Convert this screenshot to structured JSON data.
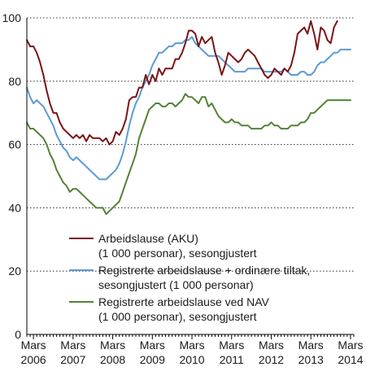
{
  "chart_data": {
    "type": "line",
    "title": "",
    "xlabel": "",
    "ylabel": "",
    "ylim": [
      0,
      100
    ],
    "yticks": [
      0,
      20,
      40,
      60,
      80,
      100
    ],
    "xlim": [
      2006.0,
      2014.25
    ],
    "xticks": [
      {
        "x": 2006.167,
        "line1": "Mars",
        "line2": "2006"
      },
      {
        "x": 2007.167,
        "line1": "Mars",
        "line2": "2007"
      },
      {
        "x": 2008.167,
        "line1": "Mars",
        "line2": "2008"
      },
      {
        "x": 2009.167,
        "line1": "Mars",
        "line2": "2009"
      },
      {
        "x": 2010.167,
        "line1": "Mars",
        "line2": "2010"
      },
      {
        "x": 2011.167,
        "line1": "Mars",
        "line2": "2011"
      },
      {
        "x": 2012.167,
        "line1": "Mars",
        "line2": "2012"
      },
      {
        "x": 2013.167,
        "line1": "Mars",
        "line2": "2013"
      },
      {
        "x": 2014.167,
        "line1": "Mars",
        "line2": "2014"
      }
    ],
    "grid": "horizontal dotted",
    "legend_position": "lower-center",
    "series": [
      {
        "name": "Arbeidslause (AKU)\n(1 000 personar), sesongjustert",
        "color": "#7a1416",
        "points": [
          [
            2006.0,
            93
          ],
          [
            2006.083,
            91
          ],
          [
            2006.167,
            91
          ],
          [
            2006.25,
            89
          ],
          [
            2006.333,
            86
          ],
          [
            2006.417,
            82
          ],
          [
            2006.5,
            77
          ],
          [
            2006.583,
            73
          ],
          [
            2006.667,
            70
          ],
          [
            2006.75,
            70
          ],
          [
            2006.833,
            67
          ],
          [
            2006.917,
            65
          ],
          [
            2007.0,
            64
          ],
          [
            2007.083,
            63
          ],
          [
            2007.167,
            62
          ],
          [
            2007.25,
            63
          ],
          [
            2007.333,
            62
          ],
          [
            2007.417,
            63
          ],
          [
            2007.5,
            61
          ],
          [
            2007.583,
            63
          ],
          [
            2007.667,
            62
          ],
          [
            2007.75,
            62
          ],
          [
            2007.833,
            62
          ],
          [
            2007.917,
            61
          ],
          [
            2008.0,
            62
          ],
          [
            2008.083,
            60
          ],
          [
            2008.167,
            61
          ],
          [
            2008.25,
            64
          ],
          [
            2008.333,
            63
          ],
          [
            2008.417,
            65
          ],
          [
            2008.5,
            68
          ],
          [
            2008.583,
            74
          ],
          [
            2008.667,
            75
          ],
          [
            2008.75,
            75
          ],
          [
            2008.833,
            78
          ],
          [
            2008.917,
            78
          ],
          [
            2009.0,
            82
          ],
          [
            2009.083,
            79
          ],
          [
            2009.167,
            82
          ],
          [
            2009.25,
            80
          ],
          [
            2009.333,
            84
          ],
          [
            2009.417,
            82
          ],
          [
            2009.5,
            84
          ],
          [
            2009.583,
            84
          ],
          [
            2009.667,
            84
          ],
          [
            2009.75,
            87
          ],
          [
            2009.833,
            87
          ],
          [
            2009.917,
            89
          ],
          [
            2010.0,
            92
          ],
          [
            2010.083,
            96
          ],
          [
            2010.167,
            96
          ],
          [
            2010.25,
            95
          ],
          [
            2010.333,
            91
          ],
          [
            2010.417,
            94
          ],
          [
            2010.5,
            92
          ],
          [
            2010.583,
            93
          ],
          [
            2010.667,
            94
          ],
          [
            2010.75,
            89
          ],
          [
            2010.833,
            86
          ],
          [
            2010.917,
            82
          ],
          [
            2011.0,
            85
          ],
          [
            2011.083,
            89
          ],
          [
            2011.167,
            88
          ],
          [
            2011.25,
            87
          ],
          [
            2011.333,
            86
          ],
          [
            2011.417,
            87
          ],
          [
            2011.5,
            89
          ],
          [
            2011.583,
            90
          ],
          [
            2011.667,
            89
          ],
          [
            2011.75,
            88
          ],
          [
            2011.833,
            86
          ],
          [
            2011.917,
            84
          ],
          [
            2012.0,
            82
          ],
          [
            2012.083,
            81
          ],
          [
            2012.167,
            82
          ],
          [
            2012.25,
            84
          ],
          [
            2012.333,
            83
          ],
          [
            2012.417,
            82
          ],
          [
            2012.5,
            84
          ],
          [
            2012.583,
            83
          ],
          [
            2012.667,
            85
          ],
          [
            2012.75,
            89
          ],
          [
            2012.833,
            95
          ],
          [
            2012.917,
            96
          ],
          [
            2013.0,
            97
          ],
          [
            2013.083,
            95
          ],
          [
            2013.167,
            99
          ],
          [
            2013.25,
            95
          ],
          [
            2013.333,
            90
          ],
          [
            2013.417,
            97
          ],
          [
            2013.5,
            96
          ],
          [
            2013.583,
            93
          ],
          [
            2013.667,
            92
          ],
          [
            2013.75,
            97
          ],
          [
            2013.833,
            99
          ]
        ]
      },
      {
        "name": "Registrerte arbeidslause + ordinære tiltak,\nsesongjustert (1 000 personar)",
        "color": "#5b9bd5",
        "points": [
          [
            2006.0,
            78
          ],
          [
            2006.083,
            75
          ],
          [
            2006.167,
            73
          ],
          [
            2006.25,
            74
          ],
          [
            2006.333,
            73
          ],
          [
            2006.417,
            72
          ],
          [
            2006.5,
            70
          ],
          [
            2006.583,
            68
          ],
          [
            2006.667,
            66
          ],
          [
            2006.75,
            63
          ],
          [
            2006.833,
            61
          ],
          [
            2006.917,
            59
          ],
          [
            2007.0,
            58
          ],
          [
            2007.083,
            56
          ],
          [
            2007.167,
            55
          ],
          [
            2007.25,
            56
          ],
          [
            2007.333,
            55
          ],
          [
            2007.417,
            54
          ],
          [
            2007.5,
            53
          ],
          [
            2007.583,
            52
          ],
          [
            2007.667,
            51
          ],
          [
            2007.75,
            50
          ],
          [
            2007.833,
            49
          ],
          [
            2007.917,
            49
          ],
          [
            2008.0,
            49
          ],
          [
            2008.083,
            50
          ],
          [
            2008.167,
            51
          ],
          [
            2008.25,
            52
          ],
          [
            2008.333,
            54
          ],
          [
            2008.417,
            57
          ],
          [
            2008.5,
            61
          ],
          [
            2008.583,
            66
          ],
          [
            2008.667,
            70
          ],
          [
            2008.75,
            73
          ],
          [
            2008.833,
            75
          ],
          [
            2008.917,
            78
          ],
          [
            2009.0,
            80
          ],
          [
            2009.083,
            82
          ],
          [
            2009.167,
            85
          ],
          [
            2009.25,
            87
          ],
          [
            2009.333,
            89
          ],
          [
            2009.417,
            89
          ],
          [
            2009.5,
            90
          ],
          [
            2009.583,
            91
          ],
          [
            2009.667,
            91
          ],
          [
            2009.75,
            92
          ],
          [
            2009.833,
            92
          ],
          [
            2009.917,
            92
          ],
          [
            2010.0,
            93
          ],
          [
            2010.083,
            93
          ],
          [
            2010.167,
            94
          ],
          [
            2010.25,
            92
          ],
          [
            2010.333,
            91
          ],
          [
            2010.417,
            90
          ],
          [
            2010.5,
            89
          ],
          [
            2010.583,
            88
          ],
          [
            2010.667,
            88
          ],
          [
            2010.75,
            88
          ],
          [
            2010.833,
            88
          ],
          [
            2010.917,
            87
          ],
          [
            2011.0,
            86
          ],
          [
            2011.083,
            85
          ],
          [
            2011.167,
            84
          ],
          [
            2011.25,
            83
          ],
          [
            2011.333,
            83
          ],
          [
            2011.417,
            83
          ],
          [
            2011.5,
            83
          ],
          [
            2011.583,
            84
          ],
          [
            2011.667,
            84
          ],
          [
            2011.75,
            84
          ],
          [
            2011.833,
            84
          ],
          [
            2011.917,
            84
          ],
          [
            2012.0,
            83
          ],
          [
            2012.083,
            83
          ],
          [
            2012.167,
            83
          ],
          [
            2012.25,
            83
          ],
          [
            2012.333,
            83
          ],
          [
            2012.417,
            83
          ],
          [
            2012.5,
            84
          ],
          [
            2012.583,
            83
          ],
          [
            2012.667,
            82
          ],
          [
            2012.75,
            82
          ],
          [
            2012.833,
            82
          ],
          [
            2012.917,
            83
          ],
          [
            2013.0,
            83
          ],
          [
            2013.083,
            82
          ],
          [
            2013.167,
            82
          ],
          [
            2013.25,
            83
          ],
          [
            2013.333,
            85
          ],
          [
            2013.417,
            86
          ],
          [
            2013.5,
            86
          ],
          [
            2013.583,
            87
          ],
          [
            2013.667,
            88
          ],
          [
            2013.75,
            89
          ],
          [
            2013.833,
            89
          ],
          [
            2013.917,
            90
          ],
          [
            2014.0,
            90
          ],
          [
            2014.083,
            90
          ],
          [
            2014.167,
            90
          ]
        ]
      },
      {
        "name": "Registrerte arbeidslause ved NAV\n(1 000 personar), sesongjustert",
        "color": "#548235",
        "points": [
          [
            2006.0,
            67
          ],
          [
            2006.083,
            65
          ],
          [
            2006.167,
            65
          ],
          [
            2006.25,
            64
          ],
          [
            2006.333,
            63
          ],
          [
            2006.417,
            62
          ],
          [
            2006.5,
            60
          ],
          [
            2006.583,
            57
          ],
          [
            2006.667,
            55
          ],
          [
            2006.75,
            52
          ],
          [
            2006.833,
            50
          ],
          [
            2006.917,
            48
          ],
          [
            2007.0,
            47
          ],
          [
            2007.083,
            45
          ],
          [
            2007.167,
            46
          ],
          [
            2007.25,
            46
          ],
          [
            2007.333,
            45
          ],
          [
            2007.417,
            44
          ],
          [
            2007.5,
            43
          ],
          [
            2007.583,
            42
          ],
          [
            2007.667,
            41
          ],
          [
            2007.75,
            40
          ],
          [
            2007.833,
            40
          ],
          [
            2007.917,
            40
          ],
          [
            2008.0,
            38
          ],
          [
            2008.083,
            39
          ],
          [
            2008.167,
            40
          ],
          [
            2008.25,
            41
          ],
          [
            2008.333,
            42
          ],
          [
            2008.417,
            45
          ],
          [
            2008.5,
            48
          ],
          [
            2008.583,
            51
          ],
          [
            2008.667,
            54
          ],
          [
            2008.75,
            57
          ],
          [
            2008.833,
            62
          ],
          [
            2008.917,
            65
          ],
          [
            2009.0,
            68
          ],
          [
            2009.083,
            71
          ],
          [
            2009.167,
            72
          ],
          [
            2009.25,
            73
          ],
          [
            2009.333,
            73
          ],
          [
            2009.417,
            72
          ],
          [
            2009.5,
            72
          ],
          [
            2009.583,
            73
          ],
          [
            2009.667,
            73
          ],
          [
            2009.75,
            72
          ],
          [
            2009.833,
            73
          ],
          [
            2009.917,
            74
          ],
          [
            2010.0,
            76
          ],
          [
            2010.083,
            75
          ],
          [
            2010.167,
            75
          ],
          [
            2010.25,
            74
          ],
          [
            2010.333,
            73
          ],
          [
            2010.417,
            75
          ],
          [
            2010.5,
            75
          ],
          [
            2010.583,
            72
          ],
          [
            2010.667,
            73
          ],
          [
            2010.75,
            71
          ],
          [
            2010.833,
            69
          ],
          [
            2010.917,
            68
          ],
          [
            2011.0,
            67
          ],
          [
            2011.083,
            67
          ],
          [
            2011.167,
            68
          ],
          [
            2011.25,
            67
          ],
          [
            2011.333,
            67
          ],
          [
            2011.417,
            66
          ],
          [
            2011.5,
            66
          ],
          [
            2011.583,
            66
          ],
          [
            2011.667,
            65
          ],
          [
            2011.75,
            65
          ],
          [
            2011.833,
            65
          ],
          [
            2011.917,
            65
          ],
          [
            2012.0,
            66
          ],
          [
            2012.083,
            66
          ],
          [
            2012.167,
            67
          ],
          [
            2012.25,
            66
          ],
          [
            2012.333,
            66
          ],
          [
            2012.417,
            65
          ],
          [
            2012.5,
            65
          ],
          [
            2012.583,
            65
          ],
          [
            2012.667,
            66
          ],
          [
            2012.75,
            66
          ],
          [
            2012.833,
            66
          ],
          [
            2012.917,
            67
          ],
          [
            2013.0,
            67
          ],
          [
            2013.083,
            68
          ],
          [
            2013.167,
            70
          ],
          [
            2013.25,
            70
          ],
          [
            2013.333,
            71
          ],
          [
            2013.417,
            72
          ],
          [
            2013.5,
            73
          ],
          [
            2013.583,
            74
          ],
          [
            2013.667,
            74
          ],
          [
            2013.75,
            74
          ],
          [
            2013.833,
            74
          ],
          [
            2013.917,
            74
          ],
          [
            2014.0,
            74
          ],
          [
            2014.083,
            74
          ],
          [
            2014.167,
            74
          ]
        ]
      }
    ]
  }
}
